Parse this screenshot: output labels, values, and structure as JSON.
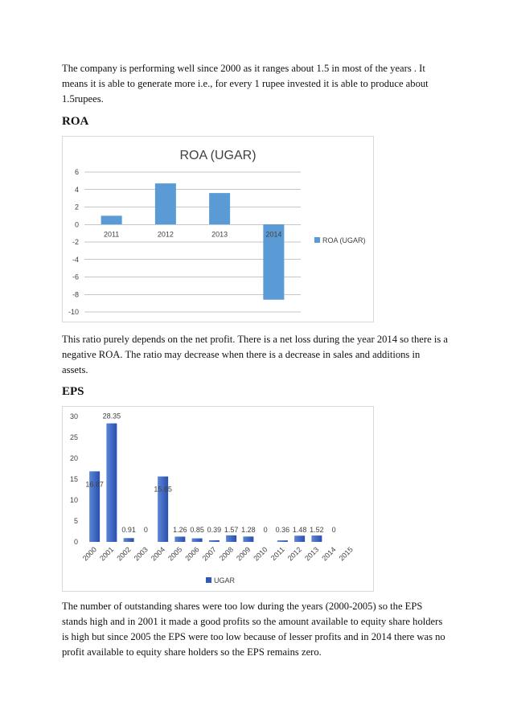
{
  "paragraphs": {
    "p1": "The company is performing  well since 2000 as it ranges about 1.5 in most of the years . It means it is able to generate more i.e., for every 1 rupee invested it is able to produce about 1.5rupees.",
    "p2": "This ratio purely depends on the net profit. There is a net loss during the year 2014 so there is a negative ROA. The ratio may decrease when there is a decrease in sales and additions in assets.",
    "p3": "The number of outstanding shares were too low during the years (2000-2005) so the EPS stands high and in 2001 it made a good profits so the amount available to equity share holders is high but since 2005 the EPS were too low because of lesser profits and in 2014 there was no profit available to equity share holders so the EPS remains zero."
  },
  "headings": {
    "roa": "ROA",
    "eps": "EPS"
  },
  "colors": {
    "bar": "#5b9bd5",
    "bar_dark": "#2e59b8",
    "grid": "#8c8c8c",
    "border": "#d9d9d9"
  },
  "chart_data": [
    {
      "type": "bar",
      "title": "ROA (UGAR)",
      "categories": [
        "2011",
        "2012",
        "2013",
        "2014"
      ],
      "series": [
        {
          "name": "ROA (UGAR)",
          "values": [
            1.0,
            4.7,
            3.6,
            -8.6
          ]
        }
      ],
      "ylim": [
        -10,
        6
      ],
      "yticks": [
        "6",
        "4",
        "2",
        "0",
        "-2",
        "-4",
        "-6",
        "-8",
        "-10"
      ],
      "grid": true,
      "legend": "right"
    },
    {
      "type": "bar",
      "title": "",
      "categories": [
        "2000",
        "2001",
        "2002",
        "2003",
        "2004",
        "2005",
        "2006",
        "2007",
        "2008",
        "2009",
        "2010",
        "2011",
        "2012",
        "2013",
        "2014",
        "2015"
      ],
      "series": [
        {
          "name": "UGAR",
          "values": [
            16.87,
            28.35,
            0.91,
            0,
            15.65,
            1.26,
            0.85,
            0.39,
            1.57,
            1.28,
            0,
            0.36,
            1.48,
            1.52,
            0,
            null
          ]
        }
      ],
      "data_labels": [
        "16.87",
        "28.35",
        "0.91",
        "0",
        "15.65",
        "1.26",
        "0.85",
        "0.39",
        "1.57",
        "1.28",
        "0",
        "0.36",
        "1.48",
        "1.52",
        "0",
        ""
      ],
      "ylim": [
        0,
        30
      ],
      "yticks": [
        "30",
        "25",
        "20",
        "15",
        "10",
        "5",
        "0"
      ],
      "grid": false,
      "legend": "bottom"
    }
  ]
}
